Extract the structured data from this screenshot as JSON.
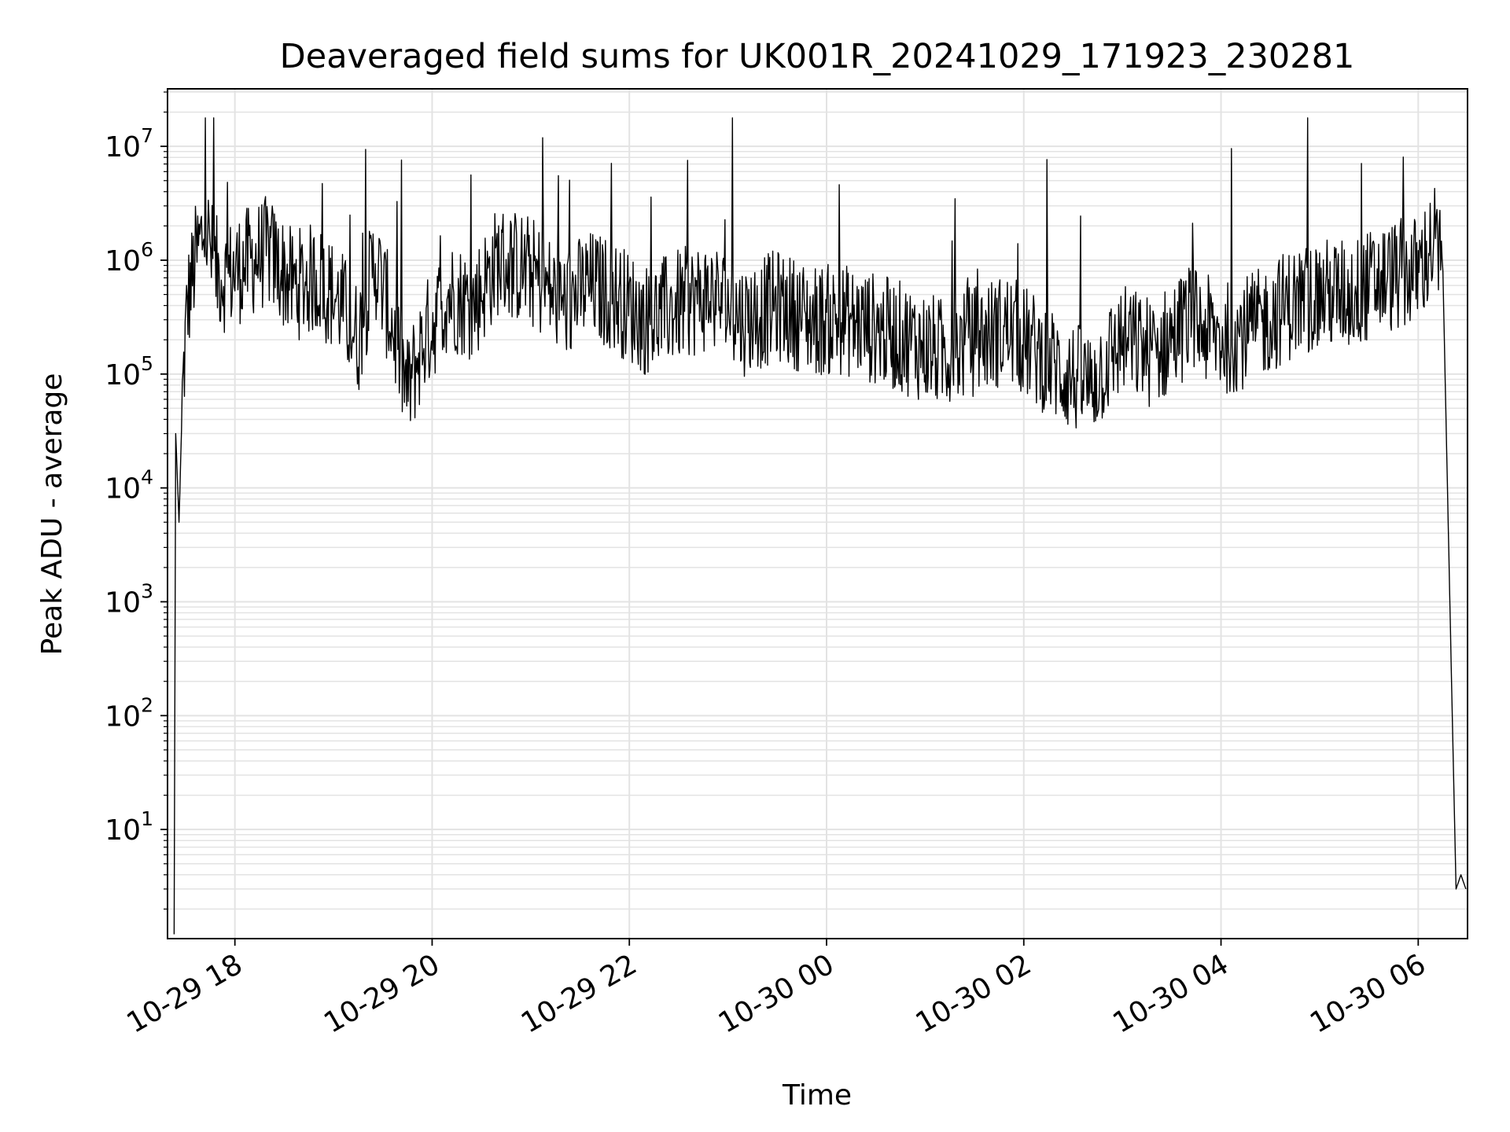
{
  "chart_data": {
    "type": "line",
    "title": "Deaveraged field sums for UK001R_20241029_171923_230281",
    "xlabel": "Time",
    "ylabel": "Peak ADU - average",
    "yscale": "log",
    "ylim": [
      1.1,
      32000000
    ],
    "xlim": [
      "2024-10-29 17:19",
      "2024-10-30 06:30"
    ],
    "x_ticks": [
      "10-29 18",
      "10-29 20",
      "10-29 22",
      "10-30 00",
      "10-30 02",
      "10-30 04",
      "10-30 06"
    ],
    "y_ticks": [
      {
        "base": "10",
        "exp": "1",
        "value": 10
      },
      {
        "base": "10",
        "exp": "2",
        "value": 100
      },
      {
        "base": "10",
        "exp": "3",
        "value": 1000
      },
      {
        "base": "10",
        "exp": "4",
        "value": 10000
      },
      {
        "base": "10",
        "exp": "5",
        "value": 100000
      },
      {
        "base": "10",
        "exp": "6",
        "value": 1000000
      },
      {
        "base": "10",
        "exp": "7",
        "value": 10000000
      }
    ],
    "grid": true,
    "line_color": "#000000",
    "grid_color": "#e3e3e3",
    "series": [
      {
        "x": [
          "2024-10-29 17:23",
          "2024-10-29 17:24",
          "2024-10-29 17:26",
          "2024-10-29 17:28",
          "2024-10-29 17:31",
          "2024-10-29 17:36",
          "2024-10-29 17:42",
          "2024-10-29 17:48",
          "2024-10-29 17:55",
          "2024-10-29 18:05",
          "2024-10-29 18:20",
          "2024-10-29 18:35",
          "2024-10-29 18:50",
          "2024-10-29 19:05",
          "2024-10-29 19:15",
          "2024-10-29 19:25",
          "2024-10-29 19:35",
          "2024-10-29 19:45",
          "2024-10-29 19:55",
          "2024-10-29 20:10",
          "2024-10-29 20:25",
          "2024-10-29 20:40",
          "2024-10-29 21:00",
          "2024-10-29 21:20",
          "2024-10-29 21:35",
          "2024-10-29 21:50",
          "2024-10-29 22:10",
          "2024-10-29 22:30",
          "2024-10-29 22:50",
          "2024-10-29 23:10",
          "2024-10-29 23:30",
          "2024-10-29 23:50",
          "2024-10-30 00:10",
          "2024-10-30 00:30",
          "2024-10-30 00:50",
          "2024-10-30 01:10",
          "2024-10-30 01:30",
          "2024-10-30 01:50",
          "2024-10-30 02:10",
          "2024-10-30 02:25",
          "2024-10-30 02:40",
          "2024-10-30 03:00",
          "2024-10-30 03:20",
          "2024-10-30 03:40",
          "2024-10-30 04:00",
          "2024-10-30 04:20",
          "2024-10-30 04:40",
          "2024-10-30 05:00",
          "2024-10-30 05:20",
          "2024-10-30 05:40",
          "2024-10-30 06:00",
          "2024-10-30 06:10",
          "2024-10-30 06:15",
          "2024-10-30 06:20",
          "2024-10-30 06:23",
          "2024-10-30 06:26",
          "2024-10-30 06:29"
        ],
        "y": [
          1.2,
          30000,
          5000,
          60000,
          400000,
          1000000,
          2000000,
          800000,
          700000,
          900000,
          1200000,
          600000,
          700000,
          400000,
          200000,
          1000000,
          300000,
          70000,
          200000,
          500000,
          400000,
          1000000,
          800000,
          400000,
          600000,
          500000,
          300000,
          400000,
          500000,
          300000,
          400000,
          300000,
          300000,
          250000,
          200000,
          150000,
          200000,
          250000,
          150000,
          100000,
          80000,
          200000,
          150000,
          300000,
          200000,
          250000,
          400000,
          500000,
          500000,
          700000,
          800000,
          1500000,
          800000,
          300,
          3,
          4,
          3
        ]
      }
    ]
  }
}
